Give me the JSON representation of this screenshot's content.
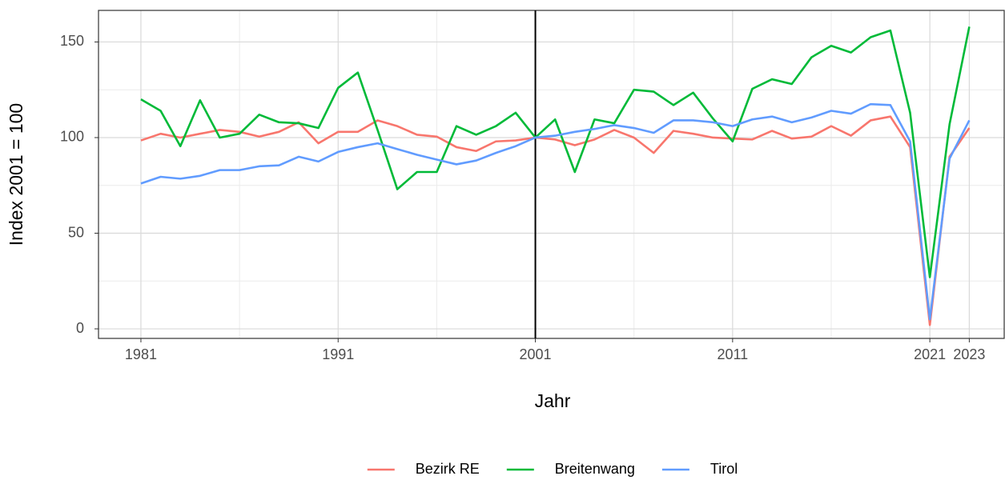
{
  "chart_data": {
    "type": "line",
    "x": [
      1981,
      1982,
      1983,
      1984,
      1985,
      1986,
      1987,
      1988,
      1989,
      1990,
      1991,
      1992,
      1993,
      1994,
      1995,
      1996,
      1997,
      1998,
      1999,
      2000,
      2001,
      2002,
      2003,
      2004,
      2005,
      2006,
      2007,
      2008,
      2009,
      2010,
      2011,
      2012,
      2013,
      2014,
      2015,
      2016,
      2017,
      2018,
      2019,
      2020,
      2021,
      2022,
      2023
    ],
    "series": [
      {
        "name": "Bezirk RE",
        "color": "#F8766D",
        "values": [
          98.5,
          102,
          100,
          102,
          104,
          103,
          100.5,
          103,
          108,
          97,
          103,
          103,
          109,
          106,
          101.5,
          100.5,
          95,
          93,
          98,
          98.5,
          100,
          99,
          96,
          99,
          104,
          100,
          92,
          103.5,
          102,
          100,
          99.5,
          99,
          103.5,
          99.5,
          100.5,
          106,
          101,
          109,
          111,
          95,
          2,
          90,
          105
        ]
      },
      {
        "name": "Breitenwang",
        "color": "#00BA38",
        "values": [
          120,
          114,
          95.5,
          119.5,
          100,
          102,
          112,
          108,
          107.5,
          105,
          126,
          134,
          104,
          73,
          82,
          82,
          106,
          101.5,
          106,
          113,
          100,
          109.5,
          82,
          109.5,
          107.5,
          125,
          124,
          117,
          123.5,
          110,
          98,
          125.5,
          130.5,
          128,
          142,
          148,
          144.5,
          152.5,
          156,
          113,
          27,
          107,
          158
        ]
      },
      {
        "name": "Tirol",
        "color": "#619CFF",
        "values": [
          76,
          79.5,
          78.5,
          80,
          83,
          83,
          85,
          85.5,
          90,
          87.5,
          92.5,
          95,
          97,
          94,
          91,
          88.5,
          86,
          88,
          92,
          95.5,
          100,
          101,
          103,
          104.5,
          106.5,
          105,
          102.5,
          109,
          109,
          108,
          106,
          109.5,
          111,
          108,
          110.5,
          114,
          112.5,
          117.5,
          117,
          98,
          5,
          89,
          109
        ]
      }
    ],
    "x_label": "Jahr",
    "y_label": "Index 2001 = 100",
    "xlim": [
      1978.85,
      2024.77
    ],
    "ylim": [
      -5,
      166.5
    ],
    "xticks": [
      1981,
      1991,
      2001,
      2011,
      2021,
      2023
    ],
    "yticks": [
      0,
      50,
      100,
      150
    ],
    "xminor": [
      1986,
      1996,
      2006,
      2016
    ],
    "yminor": [
      25,
      75,
      125
    ],
    "vline": 2001,
    "grid": true,
    "legend": "bottom"
  }
}
